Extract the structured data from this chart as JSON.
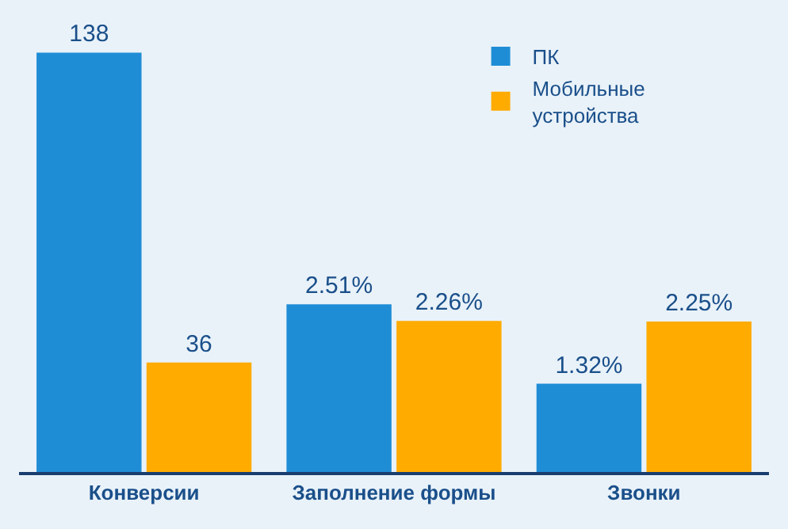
{
  "chart_data": {
    "type": "bar",
    "categories": [
      "Конверсии",
      "Заполнение формы",
      "Звонки"
    ],
    "series": [
      {
        "name": "ПК",
        "color": "#1f8dd6",
        "values": [
          138,
          null,
          null
        ],
        "value_labels": [
          "138",
          null,
          null
        ]
      },
      {
        "name": "Мобильные устройства",
        "color": "#ffab00",
        "values": [
          36,
          null,
          null
        ],
        "value_labels": [
          "36",
          null,
          null
        ]
      },
      {
        "color": "#1f8dd6",
        "axis": "y2",
        "values": [
          null,
          2.51,
          1.32
        ],
        "value_labels": [
          null,
          "2.51%",
          "1.32%"
        ]
      },
      {
        "color": "#ffab00",
        "axis": "y2",
        "values": [
          null,
          2.26,
          2.25
        ],
        "value_labels": [
          null,
          "2.26%",
          "2.25%"
        ]
      }
    ],
    "legend": "top right",
    "grid": false
  }
}
